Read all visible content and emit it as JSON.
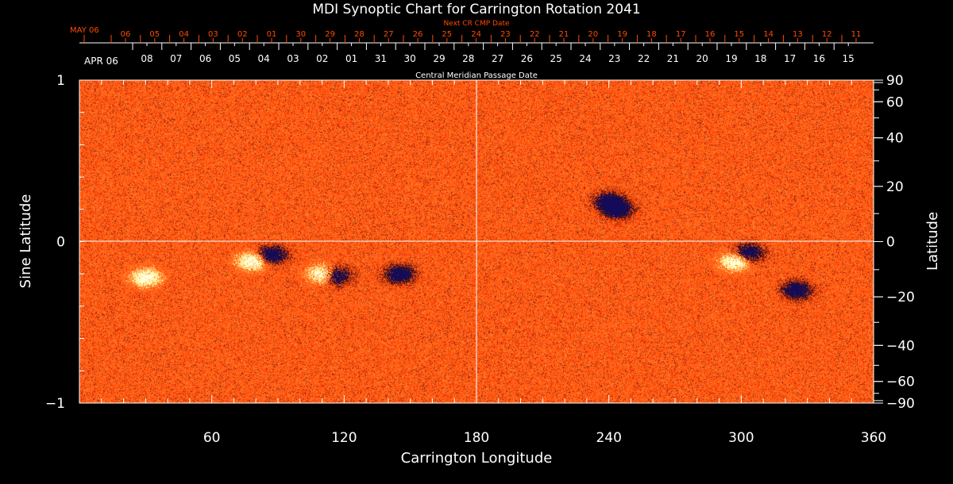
{
  "chart_data": {
    "type": "heatmap",
    "title": "MDI Synoptic Chart for Carrington Rotation 2041",
    "xlabel": "Carrington Longitude",
    "ylabel_left": "Sine Latitude",
    "ylabel_right": "Latitude",
    "xlim": [
      0,
      360
    ],
    "ylim_sine": [
      -1,
      1
    ],
    "x_ticks": [
      "60",
      "120",
      "180",
      "240",
      "300",
      "360"
    ],
    "x_tick_values": [
      60,
      120,
      180,
      240,
      300,
      360
    ],
    "y_left_ticks": [
      "1",
      "0",
      "−1"
    ],
    "y_left_tick_values": [
      1,
      0,
      -1
    ],
    "y_right_ticks": [
      "90",
      "60",
      "40",
      "20",
      "0",
      "−20",
      "−40",
      "−60",
      "−90"
    ],
    "y_right_tick_values": [
      90,
      60,
      40,
      20,
      0,
      -20,
      -40,
      -60,
      -90
    ],
    "top_axis_next_cr": {
      "label": "Next CR CMP Date",
      "start_label": "MAY 06",
      "ticks": [
        "06",
        "05",
        "04",
        "03",
        "02",
        "01",
        "30",
        "29",
        "28",
        "27",
        "26",
        "25",
        "24",
        "23",
        "22",
        "21",
        "20",
        "19",
        "18",
        "17",
        "16",
        "15",
        "14",
        "13",
        "12",
        "11"
      ]
    },
    "top_axis_cmp": {
      "label": "Central Meridian Passage Date",
      "start_label": "APR 06",
      "ticks": [
        "08",
        "07",
        "06",
        "05",
        "04",
        "03",
        "02",
        "01",
        "31",
        "30",
        "29",
        "28",
        "27",
        "26",
        "25",
        "24",
        "23",
        "22",
        "21",
        "20",
        "19",
        "18",
        "17",
        "16",
        "15"
      ]
    },
    "colors": {
      "background_field": "#ff5a10",
      "positive": "#fff8b0",
      "negative": "#10104a",
      "next_cr_axis": "#ff4a00",
      "axes": "#ffffff"
    }
  }
}
